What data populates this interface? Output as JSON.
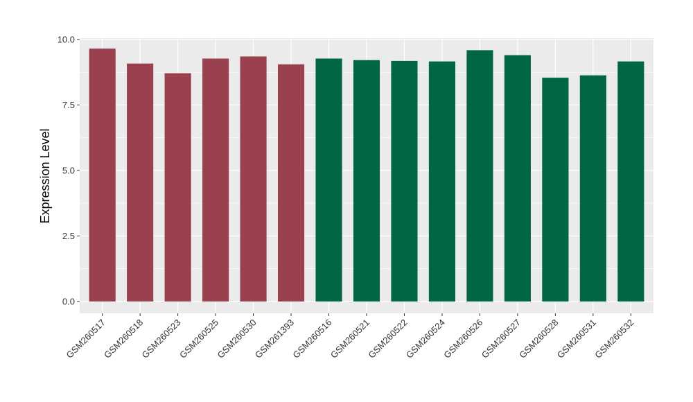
{
  "chart_data": {
    "type": "bar",
    "ylabel": "Expression Level",
    "xlabel": "",
    "ylim": [
      -0.45,
      10.05
    ],
    "yticks": [
      0.0,
      2.5,
      5.0,
      7.5,
      10.0
    ],
    "ytick_labels": [
      "0.0",
      "2.5",
      "5.0",
      "7.5",
      "10.0"
    ],
    "grid": true,
    "categories": [
      "GSM260517",
      "GSM260518",
      "GSM260523",
      "GSM260525",
      "GSM260530",
      "GSM261393",
      "GSM260516",
      "GSM260521",
      "GSM260522",
      "GSM260524",
      "GSM260526",
      "GSM260527",
      "GSM260528",
      "GSM260531",
      "GSM260532"
    ],
    "values": [
      9.65,
      9.08,
      8.71,
      9.27,
      9.35,
      9.05,
      9.27,
      9.21,
      9.18,
      9.16,
      9.59,
      9.4,
      8.54,
      8.63,
      9.16
    ],
    "bar_colors": [
      "#99414f",
      "#99414f",
      "#99414f",
      "#99414f",
      "#99414f",
      "#99414f",
      "#006644",
      "#006644",
      "#006644",
      "#006644",
      "#006644",
      "#006644",
      "#006644",
      "#006644",
      "#006644"
    ],
    "panel_background": "#ebebeb",
    "gridline_color": "#ffffff"
  }
}
